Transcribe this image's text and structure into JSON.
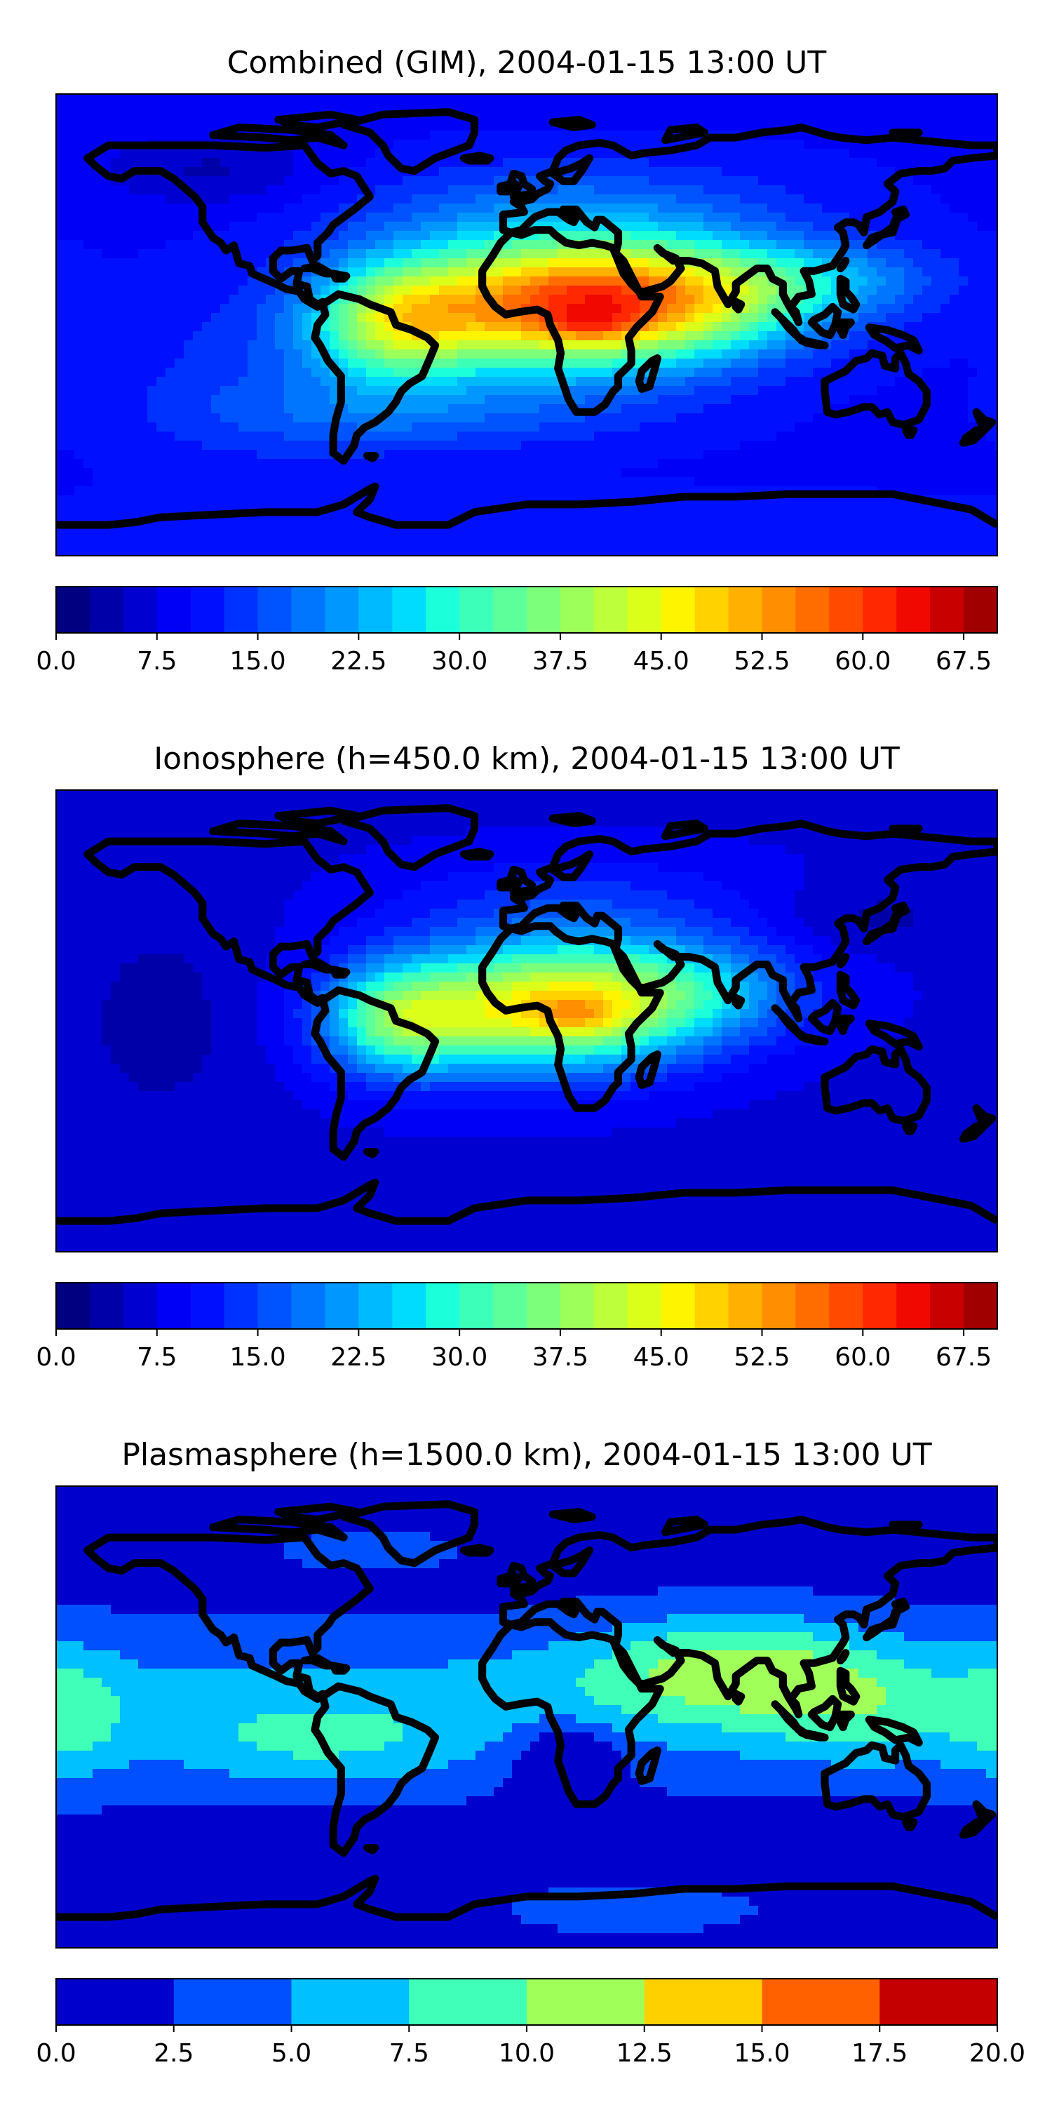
{
  "chart_data": [
    {
      "type": "heatmap",
      "title": "Combined (GIM), 2004-01-15 13:00 UT",
      "colorbar": {
        "ticks": [
          "0.0",
          "7.5",
          "15.0",
          "22.5",
          "30.0",
          "37.5",
          "45.0",
          "52.5",
          "60.0",
          "67.5"
        ],
        "range": [
          0,
          70
        ],
        "levels": 28,
        "colors": [
          "#000080",
          "#0000a8",
          "#0000d0",
          "#0000f6",
          "#0010ff",
          "#0032ff",
          "#0054ff",
          "#0076ff",
          "#0098ff",
          "#00baff",
          "#00dcfe",
          "#1cffdb",
          "#3cffba",
          "#5cff9a",
          "#7cff7a",
          "#9cff5a",
          "#bcff3a",
          "#dcff1a",
          "#fff400",
          "#ffd200",
          "#ffb000",
          "#ff8e00",
          "#ff6c00",
          "#ff4a00",
          "#ff2800",
          "#f10800",
          "#c80000",
          "#a00000"
        ]
      },
      "field": {
        "background": 9.5,
        "blobs": [
          {
            "lon": 10,
            "lat": 8,
            "slon": 45,
            "slat": 18,
            "amp": 41
          },
          {
            "lon": 25,
            "lat": 0,
            "slon": 12,
            "slat": 4,
            "amp": 7
          },
          {
            "lon": -50,
            "lat": 0,
            "slon": 22,
            "slat": 16,
            "amp": 22
          },
          {
            "lon": 60,
            "lat": 10,
            "slon": 40,
            "slat": 15,
            "amp": 20
          },
          {
            "lon": 110,
            "lat": 18,
            "slon": 35,
            "slat": 10,
            "amp": 9
          },
          {
            "lon": 20,
            "lat": 45,
            "slon": 60,
            "slat": 14,
            "amp": 7
          },
          {
            "lon": -100,
            "lat": -20,
            "slon": 40,
            "slat": 25,
            "amp": 4
          },
          {
            "lon": -40,
            "lat": -35,
            "slon": 60,
            "slat": 10,
            "amp": 6
          },
          {
            "lon": -120,
            "lat": 60,
            "slon": 30,
            "slat": 10,
            "amp": -5
          },
          {
            "lon": 0,
            "lat": -80,
            "slon": 120,
            "slat": 10,
            "amp": 3
          }
        ]
      }
    },
    {
      "type": "heatmap",
      "title": "Ionosphere  (h=450.0 km), 2004-01-15 13:00 UT",
      "colorbar": {
        "ticks": [
          "0.0",
          "7.5",
          "15.0",
          "22.5",
          "30.0",
          "37.5",
          "45.0",
          "52.5",
          "60.0",
          "67.5"
        ],
        "range": [
          0,
          70
        ],
        "levels": 28,
        "colors": [
          "#000080",
          "#0000a8",
          "#0000d0",
          "#0000f6",
          "#0010ff",
          "#0032ff",
          "#0054ff",
          "#0076ff",
          "#0098ff",
          "#00baff",
          "#00dcfe",
          "#1cffdb",
          "#3cffba",
          "#5cff9a",
          "#7cff7a",
          "#9cff5a",
          "#bcff3a",
          "#dcff1a",
          "#fff400",
          "#ffd200",
          "#ffb000",
          "#ff8e00",
          "#ff6c00",
          "#ff4a00",
          "#ff2800",
          "#f10800",
          "#c80000",
          "#a00000"
        ]
      },
      "field": {
        "background": 7,
        "blobs": [
          {
            "lon": 5,
            "lat": 5,
            "slon": 40,
            "slat": 17,
            "amp": 37
          },
          {
            "lon": 20,
            "lat": 2,
            "slon": 12,
            "slat": 5,
            "amp": 7
          },
          {
            "lon": -50,
            "lat": 0,
            "slon": 20,
            "slat": 15,
            "amp": 20
          },
          {
            "lon": 60,
            "lat": 12,
            "slon": 35,
            "slat": 14,
            "amp": 14
          },
          {
            "lon": 20,
            "lat": 45,
            "slon": 50,
            "slat": 14,
            "amp": 6
          },
          {
            "lon": -140,
            "lat": 0,
            "slon": 25,
            "slat": 30,
            "amp": -3
          },
          {
            "lon": 130,
            "lat": 40,
            "slon": 25,
            "slat": 10,
            "amp": -3
          }
        ]
      }
    },
    {
      "type": "heatmap",
      "title": "Plasmasphere (h=1500.0 km), 2004-01-15 13:00 UT",
      "colorbar": {
        "ticks": [
          "0.0",
          "2.5",
          "5.0",
          "7.5",
          "10.0",
          "12.5",
          "15.0",
          "17.5",
          "20.0"
        ],
        "range": [
          0,
          20
        ],
        "levels": 8,
        "colors": [
          "#0000cc",
          "#0050ff",
          "#00c0ff",
          "#40ffb8",
          "#a0ff58",
          "#ffd000",
          "#ff6000",
          "#c40000"
        ]
      },
      "field": {
        "background": 1.5,
        "blobs": [
          {
            "lon": 0,
            "lat": 5,
            "slon": 360,
            "slat": 20,
            "amp": 4.5
          },
          {
            "lon": 80,
            "lat": 20,
            "slon": 40,
            "slat": 14,
            "amp": 7
          },
          {
            "lon": 130,
            "lat": 0,
            "slon": 30,
            "slat": 15,
            "amp": 3
          },
          {
            "lon": -80,
            "lat": -12,
            "slon": 40,
            "slat": 12,
            "amp": 3.5
          },
          {
            "lon": -175,
            "lat": 0,
            "slon": 15,
            "slat": 20,
            "amp": 3.5
          },
          {
            "lon": 15,
            "lat": -15,
            "slon": 15,
            "slat": 10,
            "amp": -5
          },
          {
            "lon": -60,
            "lat": 65,
            "slon": 35,
            "slat": 8,
            "amp": 1.5
          },
          {
            "lon": 40,
            "lat": -75,
            "slon": 40,
            "slat": 8,
            "amp": 2
          }
        ]
      }
    }
  ]
}
